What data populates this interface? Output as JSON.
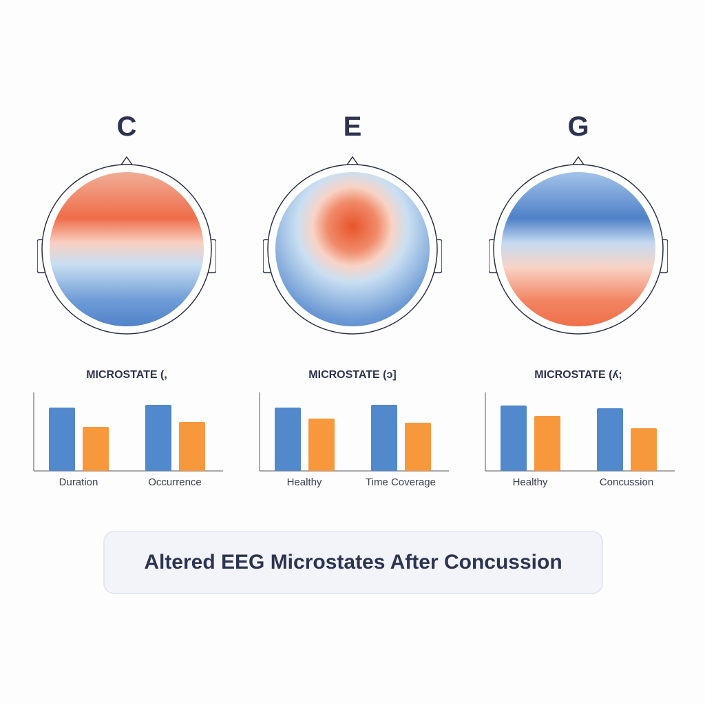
{
  "panels": [
    {
      "letter": "C",
      "microstate": "MICROSTATE (,",
      "labels": [
        "Duration",
        "Occurrence"
      ],
      "map": "frontal-positive"
    },
    {
      "letter": "E",
      "microstate": "MICROSTATE (ɔ]",
      "labels": [
        "Healthy",
        "Time Coverage"
      ],
      "map": "central-positive"
    },
    {
      "letter": "G",
      "microstate": "MICROSTATE (ʎ;",
      "labels": [
        "Healthy",
        "Concussion"
      ],
      "map": "frontal-negative"
    }
  ],
  "colors": {
    "positive": "#ef6a45",
    "negative": "#4a7ec6",
    "blue_bar": "#5288cc",
    "orange_bar": "#f8983c"
  },
  "chart_data": [
    {
      "type": "bar",
      "categories": [
        "Duration",
        "Occurrence"
      ],
      "series": [
        {
          "values": [
            92,
            96
          ]
        },
        {
          "values": [
            64,
            71
          ]
        }
      ]
    },
    {
      "type": "bar",
      "categories": [
        "Healthy",
        "Time Coverage"
      ],
      "series": [
        {
          "values": [
            92,
            96
          ]
        },
        {
          "values": [
            76,
            70
          ]
        }
      ]
    },
    {
      "type": "bar",
      "categories": [
        "Healthy",
        "Concussion"
      ],
      "series": [
        {
          "values": [
            95,
            91
          ]
        },
        {
          "values": [
            80,
            62
          ]
        }
      ]
    }
  ],
  "title": "Altered EEG Microstates After Concussion"
}
